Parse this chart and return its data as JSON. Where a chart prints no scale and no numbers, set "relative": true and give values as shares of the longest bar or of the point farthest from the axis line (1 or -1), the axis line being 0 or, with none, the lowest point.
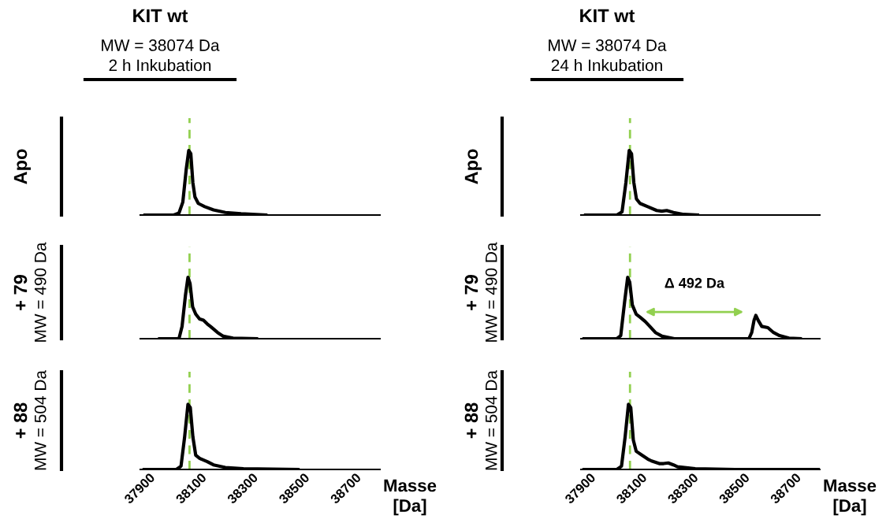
{
  "chart_data": [
    {
      "type": "line",
      "relative": true,
      "title": "KIT wt",
      "subtitle": "MW = 38074 Da\n2 h Inkubation",
      "ylabel": "Apo",
      "xlim": [
        37900,
        38830
      ],
      "xticks": [
        37900,
        38100,
        38300,
        38500,
        38700
      ],
      "tick_labels": false,
      "line_style": "solid",
      "marker": "none",
      "grid": false,
      "legend": false,
      "series": [
        {
          "color": "#000000",
          "x": [
            37918,
            38030,
            38050,
            38065,
            38078,
            38088,
            38096,
            38104,
            38112,
            38125,
            38150,
            38184,
            38230,
            38291,
            38387
          ],
          "values": [
            0,
            0,
            0.03,
            0.2,
            0.7,
            1,
            0.95,
            0.5,
            0.28,
            0.18,
            0.13,
            0.08,
            0.04,
            0.02,
            0
          ]
        }
      ],
      "ref_lines": [
        {
          "axis": "x",
          "value": 38091,
          "color": "#92d050",
          "line_style": "dashed"
        }
      ]
    },
    {
      "type": "line",
      "relative": true,
      "title": "KIT wt",
      "subtitle": "MW = 38074 Da\n24 h Inkubation",
      "ylabel": "Apo",
      "xlim": [
        37900,
        38830
      ],
      "xticks": [
        37900,
        38100,
        38300,
        38500,
        38700
      ],
      "tick_labels": false,
      "line_style": "solid",
      "marker": "none",
      "grid": false,
      "legend": false,
      "series": [
        {
          "color": "#000000",
          "x": [
            37918,
            38040,
            38060,
            38075,
            38088,
            38097,
            38106,
            38116,
            38130,
            38160,
            38195,
            38215,
            38234,
            38260,
            38300,
            38354
          ],
          "values": [
            0,
            0,
            0.05,
            0.5,
            1,
            0.95,
            0.5,
            0.25,
            0.18,
            0.13,
            0.07,
            0.06,
            0.07,
            0.04,
            0.01,
            0
          ]
        }
      ],
      "ref_lines": [
        {
          "axis": "x",
          "value": 38091,
          "color": "#92d050",
          "line_style": "dashed"
        }
      ]
    },
    {
      "type": "line",
      "relative": true,
      "ylabel": "+ 79",
      "annotations": [
        "MW = 490 Da"
      ],
      "xlim": [
        37900,
        38830
      ],
      "xticks": [
        37900,
        38100,
        38300,
        38500,
        38700
      ],
      "tick_labels": false,
      "line_style": "solid",
      "marker": "none",
      "grid": false,
      "legend": false,
      "series": [
        {
          "color": "#000000",
          "x": [
            37975,
            38050,
            38062,
            38075,
            38085,
            38093,
            38103,
            38115,
            38130,
            38145,
            38160,
            38172,
            38200,
            38222,
            38260,
            38351
          ],
          "values": [
            0,
            0,
            0.2,
            0.7,
            1,
            0.9,
            0.52,
            0.4,
            0.32,
            0.3,
            0.24,
            0.2,
            0.1,
            0.04,
            0.01,
            0
          ]
        }
      ],
      "ref_lines": [
        {
          "axis": "x",
          "value": 38091,
          "color": "#92d050",
          "line_style": "dashed"
        }
      ]
    },
    {
      "type": "line",
      "relative": true,
      "ylabel": "+ 79",
      "annotations": [
        "MW = 490 Da",
        "Δ 492 Da"
      ],
      "xlim": [
        37900,
        38830
      ],
      "xticks": [
        37900,
        38100,
        38300,
        38500,
        38700
      ],
      "tick_labels": false,
      "line_style": "solid",
      "marker": "none",
      "grid": false,
      "legend": false,
      "series": [
        {
          "color": "#000000",
          "x": [
            37912,
            38040,
            38055,
            38070,
            38082,
            38090,
            38100,
            38115,
            38130,
            38150,
            38166,
            38190,
            38216,
            38264,
            38554,
            38565,
            38574,
            38581,
            38590,
            38604,
            38628,
            38650,
            38673,
            38710,
            38754
          ],
          "values": [
            0,
            0,
            0.05,
            0.6,
            1,
            0.92,
            0.55,
            0.4,
            0.35,
            0.28,
            0.21,
            0.1,
            0.04,
            0,
            0,
            0.1,
            0.3,
            0.38,
            0.3,
            0.2,
            0.18,
            0.1,
            0.05,
            0.01,
            0
          ]
        }
      ],
      "ref_lines": [
        {
          "axis": "x",
          "value": 38091,
          "color": "#92d050",
          "line_style": "dashed"
        }
      ]
    },
    {
      "type": "line",
      "relative": true,
      "ylabel": "+ 88",
      "annotations": [
        "MW = 504 Da"
      ],
      "xlabel": "Masse\n[Da]",
      "xlim": [
        37900,
        38830
      ],
      "xticks": [
        37900,
        38100,
        38300,
        38500,
        38700
      ],
      "tick_labels": "x",
      "line_style": "solid",
      "marker": "none",
      "grid": false,
      "legend": false,
      "series": [
        {
          "color": "#000000",
          "x": [
            37915,
            38040,
            38058,
            38072,
            38085,
            38094,
            38104,
            38115,
            38130,
            38160,
            38184,
            38230,
            38300,
            38512
          ],
          "values": [
            0,
            0,
            0.05,
            0.5,
            1,
            0.95,
            0.5,
            0.22,
            0.17,
            0.12,
            0.07,
            0.03,
            0.01,
            0
          ]
        }
      ],
      "ref_lines": [
        {
          "axis": "x",
          "value": 38091,
          "color": "#92d050",
          "line_style": "dashed"
        }
      ]
    },
    {
      "type": "line",
      "relative": true,
      "ylabel": "+ 88",
      "annotations": [
        "MW = 504 Da"
      ],
      "xlabel": "Masse\n[Da]",
      "xlim": [
        37900,
        38830
      ],
      "xticks": [
        37900,
        38100,
        38300,
        38500,
        38700
      ],
      "tick_labels": "x",
      "line_style": "solid",
      "marker": "none",
      "grid": false,
      "legend": false,
      "series": [
        {
          "color": "#000000",
          "x": [
            37912,
            38040,
            38058,
            38072,
            38085,
            38094,
            38104,
            38115,
            38137,
            38160,
            38175,
            38205,
            38222,
            38240,
            38260,
            38276,
            38345,
            38500,
            38830
          ],
          "values": [
            0,
            0,
            0.05,
            0.5,
            1,
            0.95,
            0.45,
            0.28,
            0.22,
            0.16,
            0.13,
            0.09,
            0.09,
            0.1,
            0.07,
            0.04,
            0.01,
            0,
            0
          ]
        }
      ],
      "ref_lines": [
        {
          "axis": "x",
          "value": 38091,
          "color": "#92d050",
          "line_style": "dashed"
        }
      ]
    }
  ]
}
